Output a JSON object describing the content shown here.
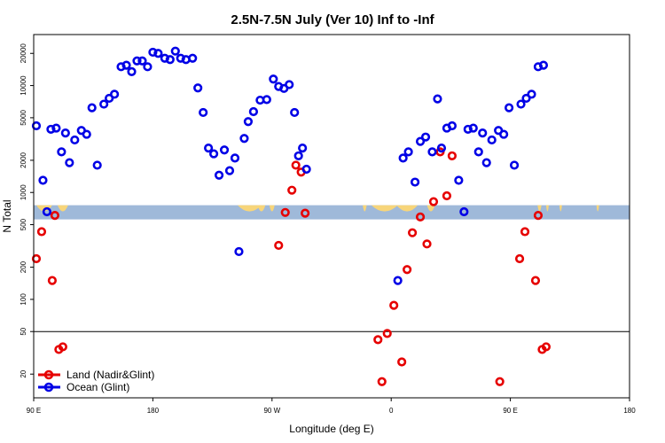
{
  "chart_data": {
    "type": "scatter",
    "title": "2.5N-7.5N July (Ver 10)   Inf to -Inf",
    "xlabel": "Longitude (deg E)",
    "ylabel": "N Total",
    "x_scale": "linear, starts at 90 E and wraps through 180 to 180 E",
    "y_scale": "log",
    "xlim": [
      "90 E",
      "180"
    ],
    "ylim": [
      12,
      30000
    ],
    "xticks": [
      "90 E",
      "180",
      "90 W",
      "0",
      "90 E",
      "180"
    ],
    "yticks": [
      20,
      50,
      100,
      200,
      500,
      1000,
      2000,
      5000,
      10000,
      20000
    ],
    "reference_line_y": 50,
    "legend": {
      "position": "bottom-left",
      "entries": [
        "Land (Nadir&Glint)",
        "Ocean (Glint)"
      ]
    },
    "colors": {
      "land": "#e60000",
      "ocean": "#0000e6",
      "landmask": "#f7d57a",
      "band": "#9fb9d9"
    },
    "landmask_note": "land-ocean mask strip drawn at the top of the band; land shown in yellow",
    "series": [
      {
        "name": "Land (Nadir&Glint)",
        "marker": "open-circle",
        "points": [
          {
            "lon": 92,
            "n": 240
          },
          {
            "lon": 96,
            "n": 430
          },
          {
            "lon": 104,
            "n": 150
          },
          {
            "lon": 106,
            "n": 610
          },
          {
            "lon": 109,
            "n": 34
          },
          {
            "lon": 112,
            "n": 36
          },
          {
            "lon": -85,
            "n": 320
          },
          {
            "lon": -80,
            "n": 650
          },
          {
            "lon": -75,
            "n": 1050
          },
          {
            "lon": -72,
            "n": 1800
          },
          {
            "lon": -68,
            "n": 1550
          },
          {
            "lon": -65,
            "n": 640
          },
          {
            "lon": -10,
            "n": 42
          },
          {
            "lon": -7,
            "n": 17
          },
          {
            "lon": -3,
            "n": 48
          },
          {
            "lon": 2,
            "n": 88
          },
          {
            "lon": 8,
            "n": 26
          },
          {
            "lon": 12,
            "n": 190
          },
          {
            "lon": 16,
            "n": 420
          },
          {
            "lon": 22,
            "n": 590
          },
          {
            "lon": 27,
            "n": 330
          },
          {
            "lon": 32,
            "n": 820
          },
          {
            "lon": 37,
            "n": 2400
          },
          {
            "lon": 42,
            "n": 930
          },
          {
            "lon": 46,
            "n": 2200
          },
          {
            "lon": 82,
            "n": 17
          },
          {
            "lon": 97,
            "n": 240
          },
          {
            "lon": 101,
            "n": 430
          },
          {
            "lon": 109,
            "n": 150
          },
          {
            "lon": 111,
            "n": 610
          },
          {
            "lon": 114,
            "n": 34
          },
          {
            "lon": 117,
            "n": 36
          }
        ]
      },
      {
        "name": "Ocean (Glint)",
        "marker": "open-circle",
        "points": [
          {
            "lon": 92,
            "n": 4200
          },
          {
            "lon": 97,
            "n": 1300
          },
          {
            "lon": 100,
            "n": 660
          },
          {
            "lon": 103,
            "n": 3900
          },
          {
            "lon": 107,
            "n": 4000
          },
          {
            "lon": 111,
            "n": 2400
          },
          {
            "lon": 114,
            "n": 3600
          },
          {
            "lon": 117,
            "n": 1900
          },
          {
            "lon": 121,
            "n": 3100
          },
          {
            "lon": 126,
            "n": 3800
          },
          {
            "lon": 130,
            "n": 3500
          },
          {
            "lon": 134,
            "n": 6200
          },
          {
            "lon": 138,
            "n": 1800
          },
          {
            "lon": 143,
            "n": 6700
          },
          {
            "lon": 147,
            "n": 7600
          },
          {
            "lon": 151,
            "n": 8300
          },
          {
            "lon": 156,
            "n": 15000
          },
          {
            "lon": 160,
            "n": 15500
          },
          {
            "lon": 164,
            "n": 13500
          },
          {
            "lon": 168,
            "n": 17000
          },
          {
            "lon": 172,
            "n": 17000
          },
          {
            "lon": 176,
            "n": 15000
          },
          {
            "lon": 180,
            "n": 20500
          },
          {
            "lon": -176,
            "n": 20000
          },
          {
            "lon": -171,
            "n": 18000
          },
          {
            "lon": -167,
            "n": 17500
          },
          {
            "lon": -163,
            "n": 21000
          },
          {
            "lon": -159,
            "n": 18000
          },
          {
            "lon": -155,
            "n": 17500
          },
          {
            "lon": -150,
            "n": 18000
          },
          {
            "lon": -146,
            "n": 9500
          },
          {
            "lon": -142,
            "n": 5600
          },
          {
            "lon": -138,
            "n": 2600
          },
          {
            "lon": -134,
            "n": 2300
          },
          {
            "lon": -130,
            "n": 1450
          },
          {
            "lon": -126,
            "n": 2500
          },
          {
            "lon": -122,
            "n": 1600
          },
          {
            "lon": -118,
            "n": 2100
          },
          {
            "lon": -115,
            "n": 280
          },
          {
            "lon": -111,
            "n": 3200
          },
          {
            "lon": -108,
            "n": 4600
          },
          {
            "lon": -104,
            "n": 5700
          },
          {
            "lon": -99,
            "n": 7300
          },
          {
            "lon": -94,
            "n": 7400
          },
          {
            "lon": -89,
            "n": 11500
          },
          {
            "lon": -85,
            "n": 9800
          },
          {
            "lon": -81,
            "n": 9400
          },
          {
            "lon": -77,
            "n": 10200
          },
          {
            "lon": -73,
            "n": 5600
          },
          {
            "lon": -70,
            "n": 2200
          },
          {
            "lon": -67,
            "n": 2600
          },
          {
            "lon": -64,
            "n": 1650
          },
          {
            "lon": 5,
            "n": 150
          },
          {
            "lon": 9,
            "n": 2100
          },
          {
            "lon": 13,
            "n": 2400
          },
          {
            "lon": 18,
            "n": 1250
          },
          {
            "lon": 22,
            "n": 3000
          },
          {
            "lon": 26,
            "n": 3300
          },
          {
            "lon": 31,
            "n": 2400
          },
          {
            "lon": 35,
            "n": 7500
          },
          {
            "lon": 38,
            "n": 2600
          },
          {
            "lon": 42,
            "n": 4000
          },
          {
            "lon": 46,
            "n": 4200
          },
          {
            "lon": 51,
            "n": 1300
          },
          {
            "lon": 55,
            "n": 660
          },
          {
            "lon": 58,
            "n": 3900
          },
          {
            "lon": 62,
            "n": 4000
          },
          {
            "lon": 66,
            "n": 2400
          },
          {
            "lon": 69,
            "n": 3600
          },
          {
            "lon": 72,
            "n": 1900
          },
          {
            "lon": 76,
            "n": 3100
          },
          {
            "lon": 81,
            "n": 3800
          },
          {
            "lon": 85,
            "n": 3500
          },
          {
            "lon": 89,
            "n": 6200
          },
          {
            "lon": 93,
            "n": 1800
          },
          {
            "lon": 98,
            "n": 6700
          },
          {
            "lon": 102,
            "n": 7600
          },
          {
            "lon": 106,
            "n": 8300
          },
          {
            "lon": 111,
            "n": 15000
          },
          {
            "lon": 115,
            "n": 15500
          }
        ]
      }
    ]
  }
}
